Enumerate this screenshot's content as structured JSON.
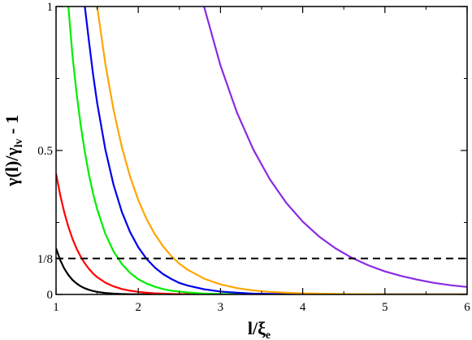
{
  "chart_data": {
    "type": "line",
    "title": "",
    "xlabel": {
      "main": "l/ξ",
      "sub": "e"
    },
    "ylabel": {
      "pre": "γ(l)/γ",
      "sub": "lv",
      "post": " - 1"
    },
    "xlim": [
      1,
      6
    ],
    "ylim": [
      0,
      1
    ],
    "grid": false,
    "legend": "none",
    "x_ticks": [
      {
        "value": 1,
        "label": "1"
      },
      {
        "value": 2,
        "label": "2"
      },
      {
        "value": 3,
        "label": "3"
      },
      {
        "value": 4,
        "label": "4"
      },
      {
        "value": 5,
        "label": "5"
      },
      {
        "value": 6,
        "label": "6"
      }
    ],
    "y_ticks": [
      {
        "value": 0,
        "label": "0"
      },
      {
        "value": 0.125,
        "label": "1/8"
      },
      {
        "value": 0.5,
        "label": "0.5"
      },
      {
        "value": 1,
        "label": "1"
      }
    ],
    "reference_line": {
      "y": 0.125,
      "style": "dashed",
      "color": "#000000"
    },
    "x": [
      1.0,
      1.05,
      1.1,
      1.15,
      1.2,
      1.25,
      1.3,
      1.35,
      1.4,
      1.45,
      1.5,
      1.6,
      1.7,
      1.8,
      1.9,
      2.0,
      2.1,
      2.2,
      2.3,
      2.4,
      2.5,
      2.6,
      2.8,
      3.0,
      3.2,
      3.4,
      3.6,
      3.8,
      4.0,
      4.2,
      4.4,
      4.6,
      4.8,
      5.0,
      5.2,
      5.4,
      5.6,
      5.8,
      6.0
    ],
    "series": [
      {
        "color": "#000000",
        "values": [
          0.16,
          0.1199,
          0.0899,
          0.0674,
          0.0505,
          0.0379,
          0.0284,
          0.0213,
          0.016,
          0.012,
          0.009,
          0.0051,
          0.0028,
          0.0016,
          0.0009,
          0.0005,
          0.0003,
          0.0002,
          0.0001,
          0.0001,
          0.0,
          0.0,
          0.0,
          0.0,
          0.0,
          0.0,
          0.0,
          0.0,
          0.0,
          0.0,
          0.0,
          0.0,
          0.0,
          0.0,
          0.0,
          0.0,
          0.0,
          0.0,
          0.0
        ]
      },
      {
        "color": "#ff0000",
        "values": [
          0.42,
          0.346,
          0.285,
          0.235,
          0.193,
          0.159,
          0.131,
          0.108,
          0.089,
          0.073,
          0.06,
          0.041,
          0.028,
          0.019,
          0.013,
          0.009,
          0.006,
          0.004,
          0.003,
          0.002,
          0.001,
          0.001,
          0.0,
          0.0,
          0.0,
          0.0,
          0.0,
          0.0,
          0.0,
          0.0,
          0.0,
          0.0,
          0.0,
          0.0,
          0.0,
          0.0,
          0.0,
          0.0,
          0.0
        ]
      },
      {
        "color": "#00ee00",
        "values": [
          null,
          null,
          null,
          1.0,
          0.829,
          0.698,
          0.588,
          0.495,
          0.417,
          0.351,
          0.296,
          0.21,
          0.149,
          0.106,
          0.075,
          0.053,
          0.038,
          0.027,
          0.019,
          0.013,
          0.01,
          0.007,
          0.003,
          0.002,
          0.001,
          0.0,
          0.0,
          0.0,
          0.0,
          0.0,
          0.0,
          0.0,
          0.0,
          0.0,
          0.0,
          0.0,
          0.0,
          0.0,
          0.0
        ]
      },
      {
        "color": "#0000ee",
        "values": [
          null,
          null,
          null,
          null,
          null,
          null,
          null,
          1.0,
          0.88,
          0.765,
          0.665,
          0.503,
          0.38,
          0.287,
          0.217,
          0.164,
          0.124,
          0.094,
          0.071,
          0.054,
          0.04,
          0.031,
          0.018,
          0.01,
          0.006,
          0.003,
          0.002,
          0.001,
          0.001,
          0.0,
          0.0,
          0.0,
          0.0,
          0.0,
          0.0,
          0.0,
          0.0,
          0.0,
          0.0
        ]
      },
      {
        "color": "#ffa500",
        "values": [
          null,
          null,
          null,
          null,
          null,
          null,
          null,
          null,
          null,
          null,
          1.0,
          0.8,
          0.64,
          0.512,
          0.41,
          0.328,
          0.262,
          0.21,
          0.168,
          0.134,
          0.107,
          0.086,
          0.055,
          0.035,
          0.022,
          0.014,
          0.009,
          0.006,
          0.004,
          0.003,
          0.002,
          0.001,
          0.001,
          0.0,
          0.0,
          0.0,
          0.0,
          0.0,
          0.0
        ]
      },
      {
        "color": "#8a2be2",
        "values": [
          null,
          null,
          null,
          null,
          null,
          null,
          null,
          null,
          null,
          null,
          null,
          null,
          null,
          null,
          null,
          null,
          null,
          null,
          null,
          null,
          null,
          null,
          1.0,
          0.795,
          0.632,
          0.503,
          0.4,
          0.318,
          0.253,
          0.201,
          0.16,
          0.127,
          0.101,
          0.08,
          0.064,
          0.051,
          0.04,
          0.032,
          0.026
        ]
      }
    ]
  }
}
